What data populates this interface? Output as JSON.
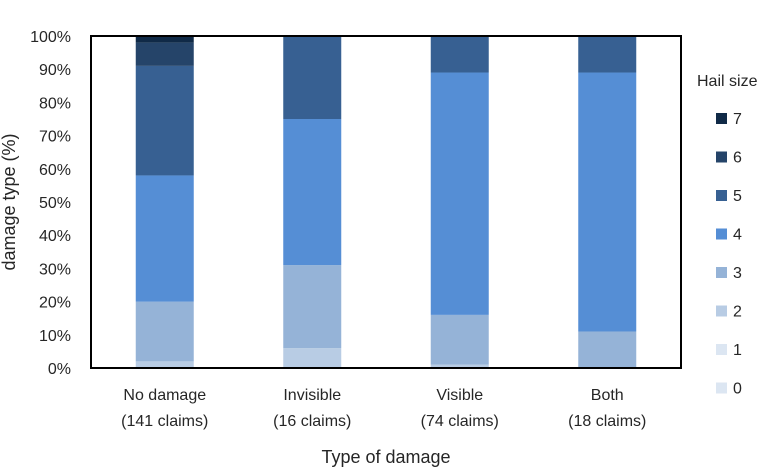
{
  "chart_data": {
    "type": "bar",
    "stacked": true,
    "title": "",
    "xlabel": "Type of damage",
    "ylabel": "damage type (%)",
    "ylim": [
      0,
      100
    ],
    "yticks": [
      "0%",
      "10%",
      "20%",
      "30%",
      "40%",
      "50%",
      "60%",
      "70%",
      "80%",
      "90%",
      "100%"
    ],
    "categories": [
      [
        "No damage",
        "(141 claims)"
      ],
      [
        "Invisible",
        "(16 claims)"
      ],
      [
        "Visible",
        "(74 claims)"
      ],
      [
        "Both",
        "(18 claims)"
      ]
    ],
    "legend_title": "Hail size",
    "legend_position": "right",
    "grid": false,
    "series": [
      {
        "name": "0",
        "color": "#dce6f2",
        "values": [
          0,
          0,
          0,
          0
        ]
      },
      {
        "name": "1",
        "color": "#dce6f2",
        "values": [
          0,
          0,
          0,
          0
        ]
      },
      {
        "name": "2",
        "color": "#b8cce4",
        "values": [
          2,
          6,
          1,
          0
        ]
      },
      {
        "name": "3",
        "color": "#95b3d7",
        "values": [
          18,
          25,
          15,
          11
        ]
      },
      {
        "name": "4",
        "color": "#558ed5",
        "values": [
          38,
          44,
          73,
          78
        ]
      },
      {
        "name": "5",
        "color": "#376092",
        "values": [
          33,
          25,
          11,
          11
        ]
      },
      {
        "name": "6",
        "color": "#254469",
        "values": [
          7,
          0,
          0,
          0
        ]
      },
      {
        "name": "7",
        "color": "#102a47",
        "values": [
          2,
          0,
          0,
          0
        ]
      }
    ]
  }
}
